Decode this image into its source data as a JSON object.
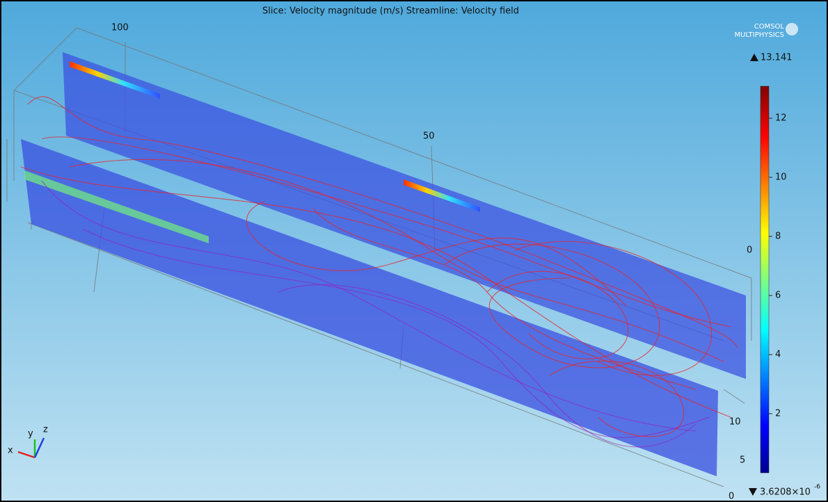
{
  "title": "Slice: Velocity magnitude (m/s)  Streamline: Velocity field",
  "logo": {
    "line1": "COMSOL",
    "line2": "MULTIPHYSICS"
  },
  "axis_labels": [
    "100",
    "50",
    "0",
    "10",
    "5",
    "0"
  ],
  "triad": {
    "x": "x",
    "y": "y",
    "z": "z"
  },
  "colorbar": {
    "max": "13.141",
    "min_mantissa": "3.6208×10",
    "min_exponent": "-6",
    "ticks": [
      "2",
      "4",
      "6",
      "8",
      "10",
      "12"
    ]
  }
}
